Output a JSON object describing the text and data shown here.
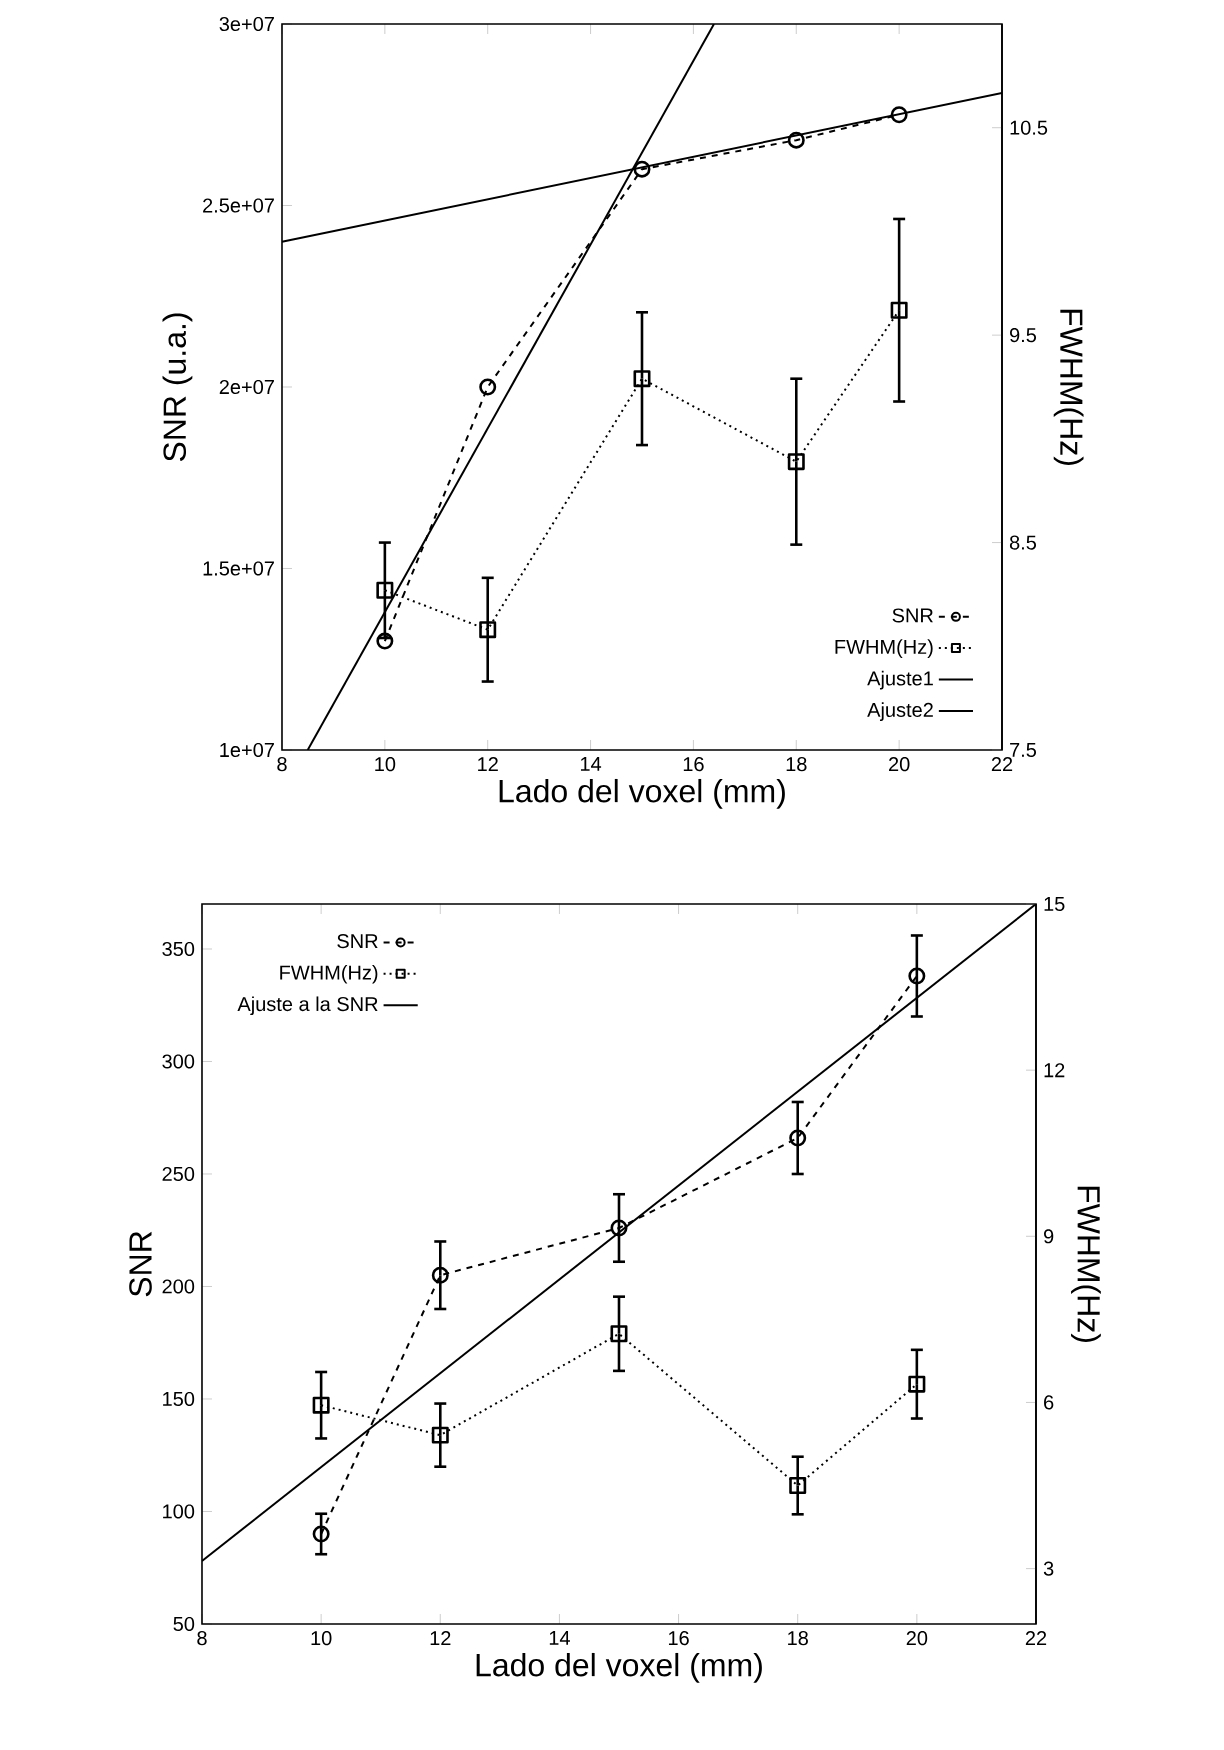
{
  "chart_data": [
    {
      "type": "line",
      "xlabel": "Lado del voxel (mm)",
      "ylabel": "SNR (u.a.)",
      "y2label": "FWHM(Hz)",
      "xlim": [
        8,
        22
      ],
      "xticks": [
        8,
        10,
        12,
        14,
        16,
        18,
        20,
        22
      ],
      "ylim": [
        10000000,
        30000000
      ],
      "yticks": [
        {
          "value": 10000000,
          "label": "1e+07"
        },
        {
          "value": 15000000,
          "label": "1.5e+07"
        },
        {
          "value": 20000000,
          "label": "2e+07"
        },
        {
          "value": 25000000,
          "label": "2.5e+07"
        },
        {
          "value": 30000000,
          "label": "3e+07"
        }
      ],
      "y2lim": [
        7.5,
        11
      ],
      "y2ticks": [
        7.5,
        8.5,
        9.5,
        10.5
      ],
      "legend": "bottom right",
      "series": [
        {
          "name": "SNR",
          "color": "#000000",
          "marker": "circle",
          "line_style": "dashed",
          "x": [
            10,
            12,
            15,
            18,
            20
          ],
          "values": [
            13000000,
            20000000,
            26000000,
            26800000,
            27500000
          ]
        },
        {
          "name": "FWHM(Hz)",
          "color": "#000000",
          "marker": "square",
          "line_style": "dotted",
          "axis": "y2",
          "x": [
            10,
            12,
            15,
            18,
            20
          ],
          "values": [
            8.27,
            8.08,
            9.29,
            8.89,
            9.62
          ],
          "errors": [
            0.23,
            0.25,
            0.32,
            0.4,
            0.44
          ]
        },
        {
          "name": "Ajuste1",
          "color": "#000000",
          "marker": "none",
          "line_style": "solid",
          "x": [
            8.5,
            16.4
          ],
          "values": [
            10000000,
            30000000
          ]
        },
        {
          "name": "Ajuste2",
          "color": "#000000",
          "marker": "none",
          "line_style": "solid",
          "x": [
            8,
            22
          ],
          "values": [
            24000000,
            28100000
          ]
        }
      ]
    },
    {
      "type": "line",
      "xlabel": "Lado del voxel (mm)",
      "ylabel": "SNR",
      "y2label": "FWHM(Hz)",
      "xlim": [
        8,
        22
      ],
      "xticks": [
        8,
        10,
        12,
        14,
        16,
        18,
        20,
        22
      ],
      "ylim": [
        50,
        370
      ],
      "yticks": [
        50,
        100,
        150,
        200,
        250,
        300,
        350
      ],
      "y2lim": [
        2,
        15
      ],
      "y2ticks": [
        3,
        6,
        9,
        12,
        15
      ],
      "legend": "top left",
      "series": [
        {
          "name": "SNR",
          "color": "#000000",
          "marker": "circle",
          "line_style": "dashed",
          "x": [
            10,
            12,
            15,
            18,
            20
          ],
          "values": [
            90,
            205,
            226,
            266,
            338
          ],
          "errors": [
            9,
            15,
            15,
            16,
            18
          ]
        },
        {
          "name": "FWHM(Hz)",
          "color": "#000000",
          "marker": "square",
          "line_style": "dotted",
          "axis": "y2",
          "x": [
            10,
            12,
            15,
            18,
            20
          ],
          "values": [
            5.95,
            5.41,
            7.24,
            4.5,
            6.33
          ],
          "errors": [
            0.6,
            0.57,
            0.67,
            0.52,
            0.62
          ]
        },
        {
          "name": "Ajuste a la SNR",
          "color": "#000000",
          "marker": "none",
          "line_style": "solid",
          "x": [
            8,
            22
          ],
          "values": [
            78,
            370
          ]
        }
      ]
    }
  ]
}
